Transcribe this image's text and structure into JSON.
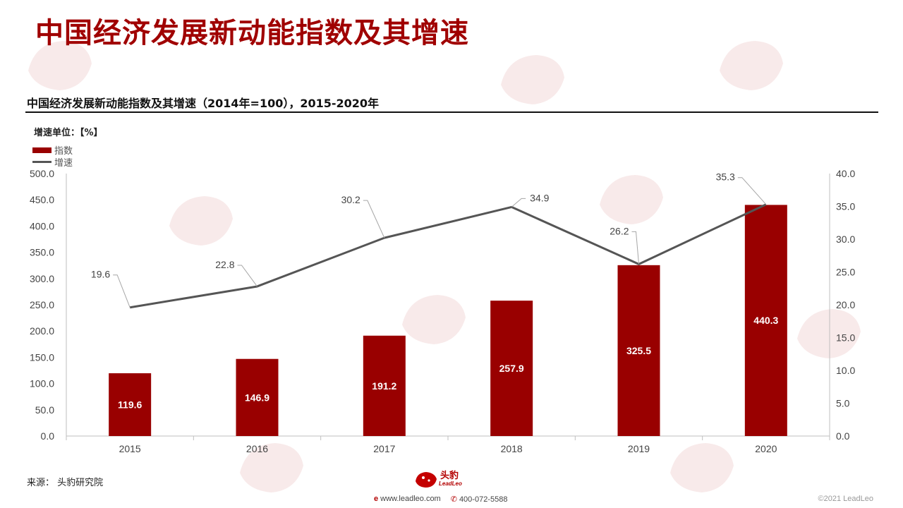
{
  "page": {
    "title": "中国经济发展新动能指数及其增速",
    "source": "来源：  头豹研究院",
    "footer_brand_cn": "头豹",
    "footer_brand_en": "LeadLeo",
    "footer_website": "www.leadleo.com",
    "footer_phone": "400-072-5588",
    "copyright": "©2021 LeadLeo",
    "watermark_text": "头豹",
    "watermark_text_en": "LeadLeo"
  },
  "chart_data": {
    "type": "bar",
    "title": "中国经济发展新动能指数及其增速（2014年=100），2015-2020年",
    "unit_note": "增速单位：【%】",
    "categories": [
      "2015",
      "2016",
      "2017",
      "2018",
      "2019",
      "2020"
    ],
    "series": [
      {
        "name": "指数",
        "type": "bar",
        "axis": "left",
        "color": "#990000",
        "values": [
          119.6,
          146.9,
          191.2,
          257.9,
          325.5,
          440.3
        ]
      },
      {
        "name": "增速",
        "type": "line",
        "axis": "right",
        "color": "#555555",
        "values": [
          19.6,
          22.8,
          30.2,
          34.9,
          26.2,
          35.3
        ]
      }
    ],
    "y_left": {
      "min": 0,
      "max": 500,
      "step": 50,
      "ticks": [
        "0.0",
        "50.0",
        "100.0",
        "150.0",
        "200.0",
        "250.0",
        "300.0",
        "350.0",
        "400.0",
        "450.0",
        "500.0"
      ]
    },
    "y_right": {
      "min": 0,
      "max": 40,
      "step": 5,
      "ticks": [
        "0.0",
        "5.0",
        "10.0",
        "15.0",
        "20.0",
        "25.0",
        "30.0",
        "35.0",
        "40.0"
      ]
    },
    "legend_position": "top-left",
    "grid": false
  }
}
